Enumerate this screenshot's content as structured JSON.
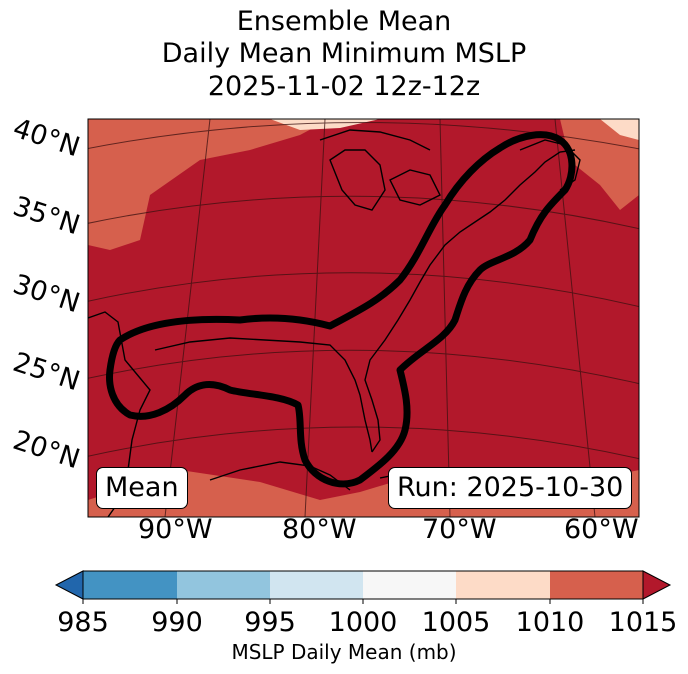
{
  "title": {
    "line1": "Ensemble Mean",
    "line2": "Daily Mean Minimum MSLP",
    "line3": "2025-11-02 12z-12z"
  },
  "map": {
    "lat_labels": [
      "40°N",
      "35°N",
      "30°N",
      "25°N",
      "20°N"
    ],
    "lon_labels": [
      "90°W",
      "80°W",
      "70°W",
      "60°W"
    ],
    "mean_label": "Mean",
    "run_label": "Run: 2025-10-30",
    "colors": {
      "fill_1010_1015": "#b2182b",
      "fill_1005_1010": "#d6604d",
      "fill_1000_1005": "#fddbc7",
      "contour": "#000000",
      "coast": "#000000"
    }
  },
  "colorbar": {
    "label": "MSLP Daily Mean (mb)",
    "ticks": [
      "985",
      "990",
      "995",
      "1000",
      "1005",
      "1010",
      "1015"
    ],
    "colors": [
      "#2166ac",
      "#4393c3",
      "#92c5de",
      "#d1e5f0",
      "#f7f7f7",
      "#fddbc7",
      "#d6604d",
      "#b2182b"
    ]
  }
}
